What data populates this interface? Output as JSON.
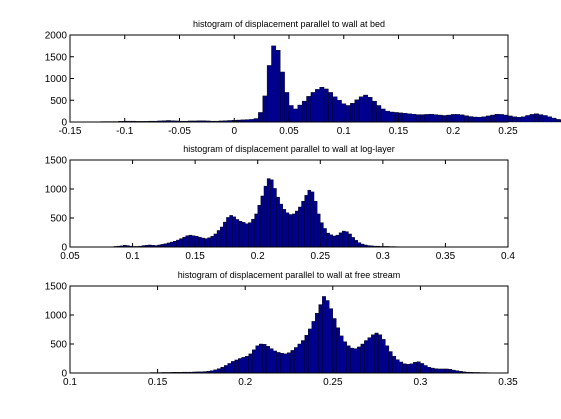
{
  "figure": {
    "colors": {
      "bar_fill": "#00008f",
      "bar_edge": "#000000",
      "axes": "#000000",
      "background": "#ffffff"
    }
  },
  "chart_data": [
    {
      "type": "bar",
      "title": "histogram of displacement parallel to wall at bed",
      "xlabel": "",
      "ylabel": "",
      "xlim": [
        -0.15,
        0.25
      ],
      "ylim": [
        0,
        2000
      ],
      "xticks": [
        "-0.15",
        "-0.1",
        "-0.05",
        "0",
        "0.05",
        "0.1",
        "0.15",
        "0.2",
        "0.25"
      ],
      "yticks": [
        "0",
        "500",
        "1000",
        "1500",
        "2000"
      ],
      "grid": false,
      "bin_start": -0.13,
      "bin_width": 0.004,
      "values": [
        5,
        5,
        10,
        10,
        10,
        10,
        15,
        20,
        20,
        20,
        15,
        15,
        15,
        20,
        20,
        25,
        30,
        35,
        30,
        25,
        20,
        20,
        25,
        25,
        30,
        30,
        25,
        20,
        20,
        25,
        30,
        35,
        40,
        45,
        50,
        55,
        60,
        80,
        220,
        600,
        1300,
        1750,
        1650,
        1150,
        680,
        380,
        300,
        390,
        480,
        590,
        680,
        750,
        800,
        760,
        680,
        580,
        500,
        420,
        380,
        430,
        510,
        580,
        620,
        570,
        480,
        380,
        300,
        250,
        230,
        220,
        210,
        200,
        190,
        180,
        170,
        170,
        175,
        180,
        170,
        160,
        150,
        160,
        175,
        175,
        165,
        145,
        125,
        115,
        110,
        120,
        140,
        160,
        180,
        175,
        160,
        140,
        120,
        110,
        120,
        150,
        175,
        190,
        170,
        150,
        120,
        90,
        60,
        40,
        25,
        15,
        10,
        8,
        5,
        3
      ]
    },
    {
      "type": "bar",
      "title": "histogram of displacement parallel to wall at log-layer",
      "xlabel": "",
      "ylabel": "",
      "xlim": [
        0.05,
        0.4
      ],
      "ylim": [
        0,
        1500
      ],
      "xticks": [
        "0.05",
        "0.1",
        "0.15",
        "0.2",
        "0.25",
        "0.3",
        "0.35",
        "0.4"
      ],
      "yticks": [
        "0",
        "500",
        "1000",
        "1500"
      ],
      "grid": false,
      "bin_start": 0.08,
      "bin_width": 0.0025,
      "values": [
        5,
        5,
        10,
        15,
        20,
        30,
        25,
        15,
        10,
        10,
        15,
        25,
        30,
        35,
        30,
        25,
        35,
        45,
        55,
        70,
        85,
        100,
        120,
        145,
        170,
        195,
        205,
        195,
        185,
        170,
        155,
        145,
        160,
        185,
        225,
        285,
        345,
        430,
        510,
        545,
        520,
        475,
        445,
        425,
        400,
        420,
        480,
        570,
        720,
        880,
        1050,
        1180,
        1160,
        1010,
        860,
        740,
        650,
        590,
        560,
        570,
        620,
        690,
        790,
        890,
        980,
        950,
        790,
        570,
        420,
        320,
        240,
        210,
        190,
        205,
        245,
        275,
        265,
        225,
        165,
        115,
        75,
        50,
        35,
        25,
        20,
        15,
        15,
        10,
        10,
        10,
        8,
        8,
        6,
        5,
        5,
        5,
        5,
        4,
        4,
        3
      ]
    },
    {
      "type": "bar",
      "title": "histogram of displacement parallel to wall at free stream",
      "xlabel": "",
      "ylabel": "",
      "xlim": [
        0.1,
        0.35
      ],
      "ylim": [
        0,
        1500
      ],
      "xticks": [
        "0.1",
        "0.15",
        "0.2",
        "0.25",
        "0.3",
        "0.35"
      ],
      "yticks": [
        "0",
        "500",
        "1000",
        "1500"
      ],
      "grid": false,
      "bin_start": 0.13,
      "bin_width": 0.002,
      "values": [
        5,
        5,
        5,
        5,
        5,
        5,
        5,
        5,
        8,
        8,
        8,
        10,
        10,
        10,
        12,
        12,
        12,
        15,
        15,
        15,
        18,
        20,
        20,
        25,
        30,
        40,
        55,
        75,
        100,
        130,
        165,
        200,
        225,
        250,
        270,
        290,
        330,
        400,
        470,
        500,
        495,
        460,
        420,
        380,
        355,
        340,
        330,
        350,
        390,
        440,
        500,
        560,
        650,
        760,
        890,
        1030,
        1180,
        1320,
        1250,
        1110,
        940,
        780,
        640,
        540,
        470,
        430,
        420,
        450,
        500,
        560,
        610,
        660,
        690,
        660,
        580,
        470,
        370,
        290,
        230,
        190,
        160,
        150,
        160,
        185,
        195,
        165,
        130,
        100,
        85,
        75,
        70,
        70,
        70,
        65,
        50,
        40,
        30,
        20,
        15,
        12,
        10,
        10,
        8,
        8,
        6,
        5,
        5,
        4,
        4,
        3
      ]
    }
  ]
}
